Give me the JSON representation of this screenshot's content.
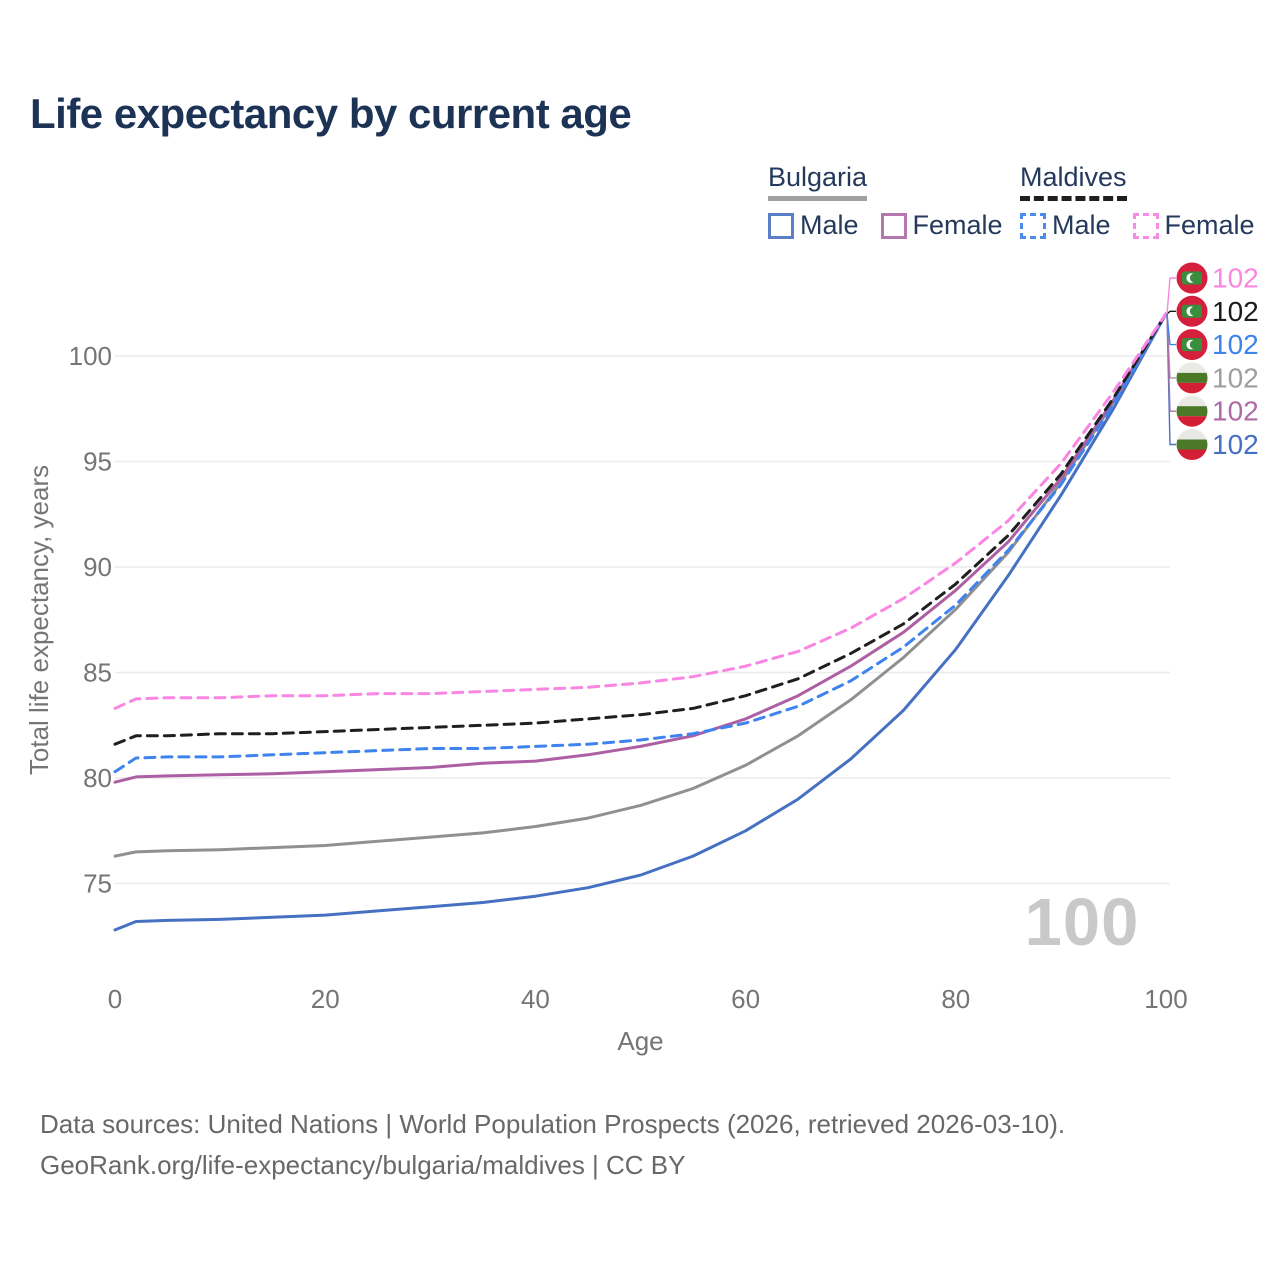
{
  "title": "Life expectancy by current age",
  "watermark": "100",
  "footer": {
    "line1": "Data sources: United Nations | World Population Prospects (2026, retrieved 2026-03-10).",
    "line2": "GeoRank.org/life-expectancy/bulgaria/maldives | CC BY"
  },
  "legend": {
    "groups": [
      {
        "label": "Bulgaria",
        "line_style": "solid",
        "underline_color": "#a0a0a0",
        "items": [
          {
            "label": "Male",
            "swatch_color": "#5b7fc7",
            "dashed": false
          },
          {
            "label": "Female",
            "swatch_color": "#b578ae",
            "dashed": false
          }
        ]
      },
      {
        "label": "Maldives",
        "line_style": "dashed",
        "underline_color": "#1f1f1f",
        "items": [
          {
            "label": "Male",
            "swatch_color": "#4b8bf0",
            "dashed": true
          },
          {
            "label": "Female",
            "swatch_color": "#f88ce4",
            "dashed": true
          }
        ]
      }
    ]
  },
  "chart_data": {
    "type": "line",
    "title": "Life expectancy by current age",
    "xlabel": "Age",
    "ylabel": "Total life expectancy, years",
    "xlim": [
      0,
      100
    ],
    "ylim": [
      72,
      103
    ],
    "x_ticks": [
      0,
      20,
      40,
      60,
      80,
      100
    ],
    "y_ticks": [
      75,
      80,
      85,
      90,
      95,
      100
    ],
    "grid": "horizontal-only",
    "gridline_color": "#ececec",
    "tick_label_color": "#757575",
    "x": [
      0,
      2,
      5,
      10,
      15,
      20,
      25,
      30,
      35,
      40,
      45,
      50,
      55,
      60,
      65,
      70,
      75,
      80,
      85,
      90,
      95,
      100
    ],
    "series": [
      {
        "id": "bulgaria-male",
        "name": "Bulgaria Male",
        "country": "Bulgaria",
        "sex": "Male",
        "color": "#4671c3",
        "dashed": false,
        "label_row": 5,
        "flag": "bulgaria-flag-icon",
        "end_label": "102",
        "end_label_color": "#4671c3",
        "values": [
          72.8,
          73.2,
          73.25,
          73.3,
          73.4,
          73.5,
          73.7,
          73.9,
          74.1,
          74.4,
          74.8,
          75.4,
          76.3,
          77.5,
          79.0,
          80.9,
          83.2,
          86.1,
          89.6,
          93.4,
          97.5,
          102
        ]
      },
      {
        "id": "bulgaria-total",
        "name": "Bulgaria (both sexes)",
        "country": "Bulgaria",
        "sex": "Total",
        "color": "#909090",
        "dashed": false,
        "label_row": 3,
        "flag": "bulgaria-flag-icon",
        "end_label": "102",
        "end_label_color": "#9e9e9e",
        "values": [
          76.3,
          76.5,
          76.55,
          76.6,
          76.7,
          76.8,
          77.0,
          77.2,
          77.4,
          77.7,
          78.1,
          78.7,
          79.5,
          80.6,
          82.0,
          83.7,
          85.7,
          88.0,
          90.7,
          94.0,
          97.8,
          102
        ]
      },
      {
        "id": "bulgaria-female",
        "name": "Bulgaria Female",
        "country": "Bulgaria",
        "sex": "Female",
        "color": "#ad5fa4",
        "dashed": false,
        "label_row": 4,
        "flag": "bulgaria-flag-icon",
        "end_label": "102",
        "end_label_color": "#b069a8",
        "values": [
          79.8,
          80.05,
          80.1,
          80.15,
          80.2,
          80.3,
          80.4,
          80.5,
          80.7,
          80.8,
          81.1,
          81.5,
          82.0,
          82.8,
          83.9,
          85.3,
          86.9,
          88.9,
          91.2,
          94.2,
          97.9,
          102
        ]
      },
      {
        "id": "maldives-male",
        "name": "Maldives Male",
        "country": "Maldives",
        "sex": "Male",
        "color": "#3f83ee",
        "dashed": true,
        "label_row": 2,
        "flag": "maldives-flag-icon",
        "end_label": "102",
        "end_label_color": "#3f83ee",
        "values": [
          80.3,
          80.95,
          81.0,
          81.0,
          81.1,
          81.2,
          81.3,
          81.4,
          81.4,
          81.5,
          81.6,
          81.8,
          82.1,
          82.6,
          83.4,
          84.6,
          86.2,
          88.2,
          90.8,
          93.9,
          97.7,
          102
        ]
      },
      {
        "id": "maldives-total",
        "name": "Maldives (both sexes)",
        "country": "Maldives",
        "sex": "Total",
        "color": "#1f1f1f",
        "dashed": true,
        "label_row": 1,
        "flag": "maldives-flag-icon",
        "end_label": "102",
        "end_label_color": "#1a1a1a",
        "values": [
          81.6,
          82.0,
          82.0,
          82.1,
          82.1,
          82.2,
          82.3,
          82.4,
          82.5,
          82.6,
          82.8,
          83.0,
          83.3,
          83.9,
          84.7,
          85.9,
          87.3,
          89.2,
          91.5,
          94.4,
          98.0,
          102
        ]
      },
      {
        "id": "maldives-female",
        "name": "Maldives Female",
        "country": "Maldives",
        "sex": "Female",
        "color": "#f986e2",
        "dashed": true,
        "label_row": 0,
        "flag": "maldives-flag-icon",
        "end_label": "102",
        "end_label_color": "#f986e2",
        "values": [
          83.3,
          83.75,
          83.8,
          83.8,
          83.9,
          83.9,
          84.0,
          84.0,
          84.1,
          84.2,
          84.3,
          84.5,
          84.8,
          85.3,
          86.0,
          87.1,
          88.5,
          90.2,
          92.2,
          94.9,
          98.3,
          102
        ]
      }
    ],
    "legend_position": "top-right",
    "watermark": "100"
  }
}
